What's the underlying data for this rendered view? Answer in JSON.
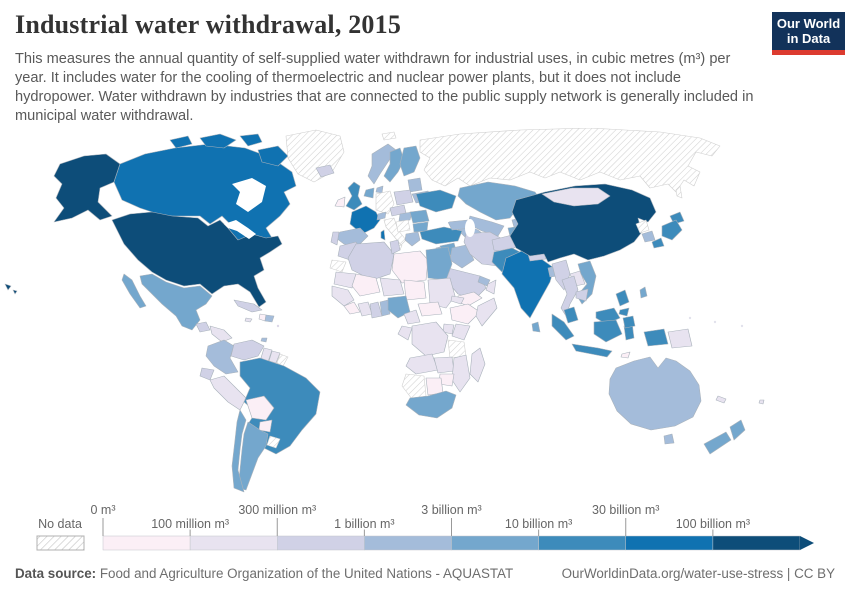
{
  "header": {
    "title": "Industrial water withdrawal, 2015",
    "subtitle": "This measures the annual quantity of self-supplied water withdrawn for industrial uses, in cubic metres (m³) per year. It includes water for the cooling of thermoelectric and nuclear power plants, but it does not include hydropower. Water withdrawn by industries that are connected to the public supply network is generally included in municipal water withdrawal.",
    "logo": {
      "line1": "Our World",
      "line2": "in Data",
      "bg_color": "#12325a",
      "accent_color": "#dc3b2f"
    }
  },
  "legend": {
    "nodata_label": "No data",
    "bin_colors": [
      "#fbeff6",
      "#e8e3f0",
      "#d0d1e6",
      "#a4bcda",
      "#74a7cd",
      "#3d8bbb",
      "#1072b1",
      "#0d4d79"
    ],
    "ticks": [
      {
        "label": "0 m³",
        "boundary": 0,
        "row": "top"
      },
      {
        "label": "100 million m³",
        "boundary": 1,
        "row": "bottom"
      },
      {
        "label": "300 million m³",
        "boundary": 2,
        "row": "top"
      },
      {
        "label": "1 billion m³",
        "boundary": 3,
        "row": "bottom"
      },
      {
        "label": "3 billion m³",
        "boundary": 4,
        "row": "top"
      },
      {
        "label": "10 billion m³",
        "boundary": 5,
        "row": "bottom"
      },
      {
        "label": "30 billion m³",
        "boundary": 6,
        "row": "top"
      },
      {
        "label": "100 billion m³",
        "boundary": 7,
        "row": "bottom"
      }
    ]
  },
  "footer": {
    "datasource_label": "Data source:",
    "datasource_value": " Food and Agriculture Organization of the United Nations - AQUASTAT",
    "link": "OurWorldinData.org/water-use-stress | CC BY"
  },
  "chart_data": {
    "type": "choropleth",
    "title": "Industrial water withdrawal, 2015",
    "unit": "m³ per year",
    "legend_position": "bottom",
    "bins": [
      "0–100 million m³",
      "100–300 million m³",
      "300 million–1 billion m³",
      "1–3 billion m³",
      "3–10 billion m³",
      "10–30 billion m³",
      "30–100 billion m³",
      "100+ billion m³"
    ],
    "bin_colors": [
      "#fbeff6",
      "#e8e3f0",
      "#d0d1e6",
      "#a4bcda",
      "#74a7cd",
      "#3d8bbb",
      "#1072b1",
      "#0d4d79"
    ],
    "nodata_style": "gray diagonal hatching",
    "countries": {
      "United States": 8,
      "China": 8,
      "Canada": 7,
      "France": 7,
      "India": 7,
      "United Kingdom": 6,
      "Ukraine": 6,
      "Turkey": 6,
      "Brazil": 6,
      "Japan": 6,
      "Indonesia": 6,
      "Philippines": 6,
      "Malaysia": 6,
      "Pakistan": 6,
      "Mexico": 5,
      "Argentina": 5,
      "Chile": 5,
      "Sweden": 5,
      "Finland": 5,
      "Netherlands": 5,
      "Kazakhstan": 5,
      "Tajikistan": 5,
      "Syria": 5,
      "Egypt": 5,
      "Nigeria": 5,
      "South Africa": 5,
      "Vietnam": 5,
      "Sri Lanka": 5,
      "Taiwan": 5,
      "New Zealand": 5,
      "Romania": 5,
      "Bulgaria": 5,
      "Norway": 4,
      "Denmark": 4,
      "Baltic states": 4,
      "Belarus": 4,
      "Spain": 4,
      "Switzerland": 4,
      "Hungary": 4,
      "Greece": 4,
      "Caucasus": 4,
      "Iraq": 4,
      "Israel": 4,
      "Gulf states": 4,
      "Turkmenistan": 4,
      "Uzbekistan": 4,
      "Kyrgyzstan": 4,
      "Bangladesh": 4,
      "South Korea": 4,
      "Colombia": 4,
      "Dominican Republic": 4,
      "Trinidad and Tobago": 4,
      "Benin": 4,
      "Australia": 4,
      "Iceland": 3,
      "Portugal": 3,
      "Poland": 3,
      "Austria": 3,
      "Morocco": 3,
      "Algeria": 3,
      "Tunisia": 3,
      "Iran": 3,
      "Afghanistan": 3,
      "Saudi Arabia": 3,
      "Jordan": 3,
      "Venezuela": 3,
      "Ecuador": 3,
      "Guatemala": 3,
      "Panama": 3,
      "Cuba": 3,
      "Ghana": 3,
      "Myanmar": 3,
      "Thailand": 3,
      "Cambodia": 3,
      "Nepal": 3,
      "Mongolia": 2,
      "Laos": 2,
      "Oman": 2,
      "Mauritania": 2,
      "Niger": 2,
      "Sudan": 2,
      "Eritrea": 2,
      "Senegal": 2,
      "Ivory Coast": 2,
      "Cameroon": 2,
      "Democratic Republic of Congo": 2,
      "Congo": 2,
      "Kenya": 2,
      "Uganda": 2,
      "Somalia": 2,
      "Angola": 2,
      "Zambia": 2,
      "Mozambique": 2,
      "Madagascar": 2,
      "Peru": 2,
      "Guyana": 2,
      "Suriname": 2,
      "Nicaragua": 2,
      "Jamaica": 2,
      "Papua New Guinea": 2,
      "New Caledonia": 2,
      "Fiji": 2,
      "Ireland": 1,
      "Libya": 1,
      "Mali": 1,
      "Chad": 1,
      "Central African Republic": 1,
      "Ethiopia": 1,
      "Liberia": 1,
      "Yemen": 1,
      "Zimbabwe": 1,
      "Botswana": 1,
      "Bolivia": 1,
      "Paraguay": 1,
      "Haiti": 1,
      "Timor": 1,
      "Russia": "no data",
      "Greenland": "no data",
      "Germany": "no data",
      "Italy": "no data",
      "Serbia": "no data",
      "Uruguay": "no data",
      "French Guiana": "no data",
      "Tanzania": "no data",
      "Namibia": "no data",
      "Western Sahara": "no data",
      "North Korea": "no data",
      "Svalbard": "no data"
    }
  }
}
